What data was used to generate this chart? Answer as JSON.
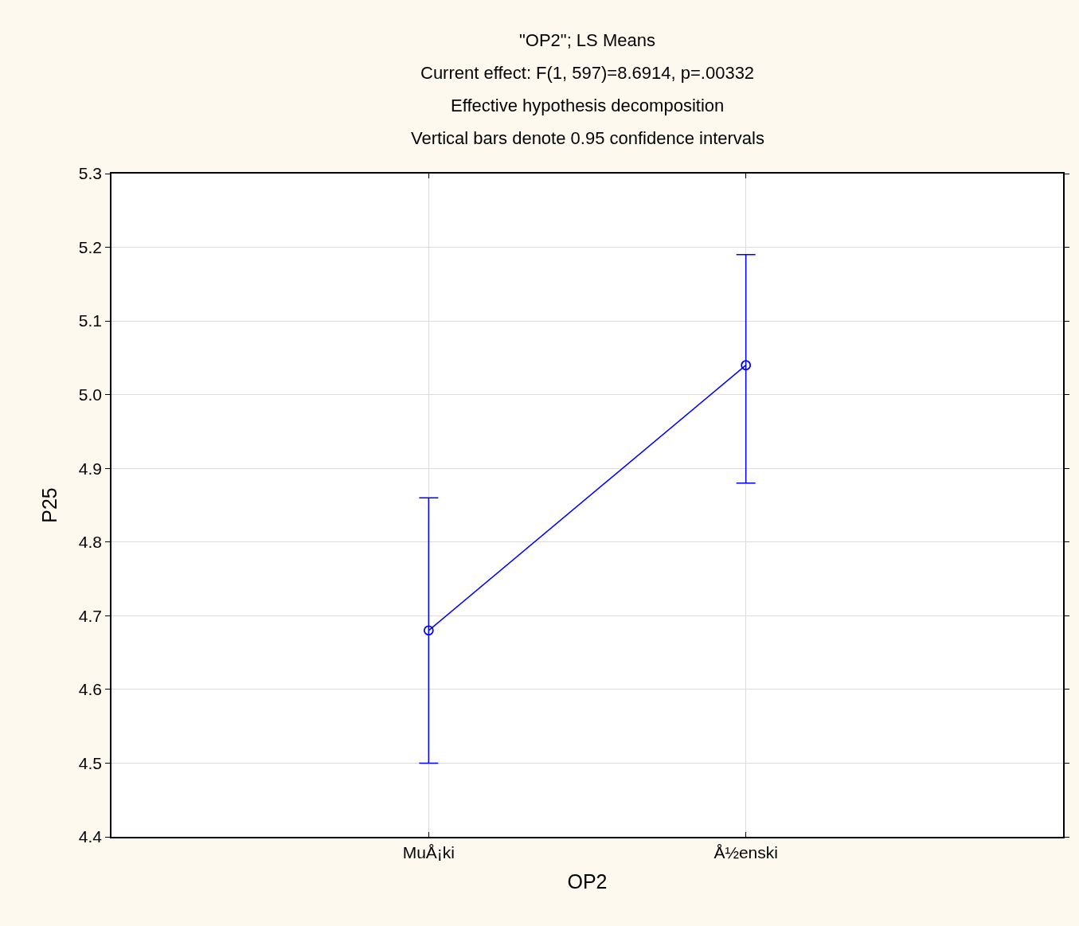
{
  "chart_data": {
    "type": "line",
    "title": "\"OP2\"; LS Means",
    "subtitle": "Current effect: F(1, 597)=8.6914, p=.00332\nEffective hypothesis decomposition\nVertical bars denote 0.95 confidence intervals",
    "xlabel": "OP2",
    "ylabel": "P25",
    "categories": [
      "MuÅ¡ki",
      "Å½enski"
    ],
    "series": [
      {
        "color": "#0000ff",
        "values": [
          4.68,
          5.04
        ],
        "errors": [
          [
            4.5,
            4.86
          ],
          [
            4.88,
            5.19
          ]
        ]
      }
    ],
    "ylim": [
      4.4,
      5.3
    ],
    "yticks": [
      4.4,
      4.5,
      4.6,
      4.7,
      4.8,
      4.9,
      {
        "value": 5.0,
        "label": "5.0"
      },
      5.1,
      5.2,
      5.3
    ],
    "grid": true,
    "marker": "circle",
    "line_style": "solid"
  }
}
